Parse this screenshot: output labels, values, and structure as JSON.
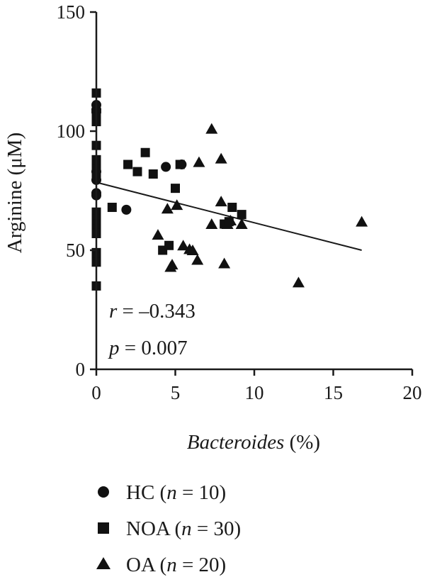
{
  "chart_data": {
    "type": "scatter",
    "xlabel": {
      "italic": "Bacteroides",
      "rest": " (%)"
    },
    "ylabel": "Arginine (μM)",
    "xlim": [
      0,
      20
    ],
    "ylim": [
      0,
      150
    ],
    "xticks": [
      "0",
      "5",
      "10",
      "15",
      "20"
    ],
    "yticks": [
      "0",
      "50",
      "100",
      "150"
    ],
    "grid": false,
    "colors": {
      "marker": "#111111",
      "axis": "#1a1a1a"
    },
    "regression": {
      "x": [
        0,
        16.8
      ],
      "y": [
        78.5,
        50
      ]
    },
    "annotations": {
      "r": {
        "var": "r",
        "text": " = –0.343"
      },
      "p": {
        "var": "p",
        "text": " = 0.007"
      }
    },
    "legend_position": "bottom",
    "series": [
      {
        "name_text": "HC (",
        "name_var": "n",
        "name_end": " = 10)",
        "marker": "circle",
        "points": [
          [
            0,
            111
          ],
          [
            0,
            109
          ],
          [
            0,
            108
          ],
          [
            0,
            83
          ],
          [
            0,
            79.5
          ],
          [
            0,
            74
          ],
          [
            0,
            73
          ],
          [
            1.9,
            67
          ],
          [
            4.4,
            85
          ],
          [
            5.4,
            86
          ]
        ]
      },
      {
        "name_text": "NOA (",
        "name_var": "n",
        "name_end": " = 30)",
        "marker": "square",
        "points": [
          [
            0,
            116
          ],
          [
            0,
            106
          ],
          [
            0,
            104
          ],
          [
            0,
            94
          ],
          [
            0,
            88
          ],
          [
            0,
            86
          ],
          [
            0,
            84
          ],
          [
            0,
            81
          ],
          [
            0,
            66
          ],
          [
            0,
            63
          ],
          [
            0,
            61
          ],
          [
            0,
            59
          ],
          [
            0,
            57
          ],
          [
            0,
            49
          ],
          [
            0,
            47
          ],
          [
            0,
            45
          ],
          [
            0,
            35
          ],
          [
            1.0,
            68
          ],
          [
            2.0,
            86
          ],
          [
            2.6,
            83
          ],
          [
            3.1,
            91
          ],
          [
            3.6,
            82
          ],
          [
            4.2,
            50
          ],
          [
            4.6,
            52
          ],
          [
            5.0,
            76
          ],
          [
            8.1,
            61
          ],
          [
            8.6,
            68
          ],
          [
            9.2,
            65
          ],
          [
            8.4,
            62
          ],
          [
            5.3,
            86
          ]
        ]
      },
      {
        "name_text": "OA (",
        "name_var": "n",
        "name_end": " = 20)",
        "marker": "triangle",
        "points": [
          [
            3.9,
            56.5
          ],
          [
            4.5,
            67.5
          ],
          [
            4.8,
            44
          ],
          [
            5.1,
            69
          ],
          [
            5.5,
            52
          ],
          [
            6.1,
            50
          ],
          [
            6.4,
            46
          ],
          [
            6.5,
            87
          ],
          [
            7.3,
            101
          ],
          [
            7.3,
            61
          ],
          [
            7.9,
            88.5
          ],
          [
            7.9,
            70.5
          ],
          [
            8.1,
            44.5
          ],
          [
            8.3,
            61
          ],
          [
            8.5,
            62.5
          ],
          [
            9.2,
            61
          ],
          [
            12.8,
            36.5
          ],
          [
            16.8,
            62
          ],
          [
            4.7,
            43
          ],
          [
            5.9,
            50.5
          ]
        ]
      }
    ]
  }
}
